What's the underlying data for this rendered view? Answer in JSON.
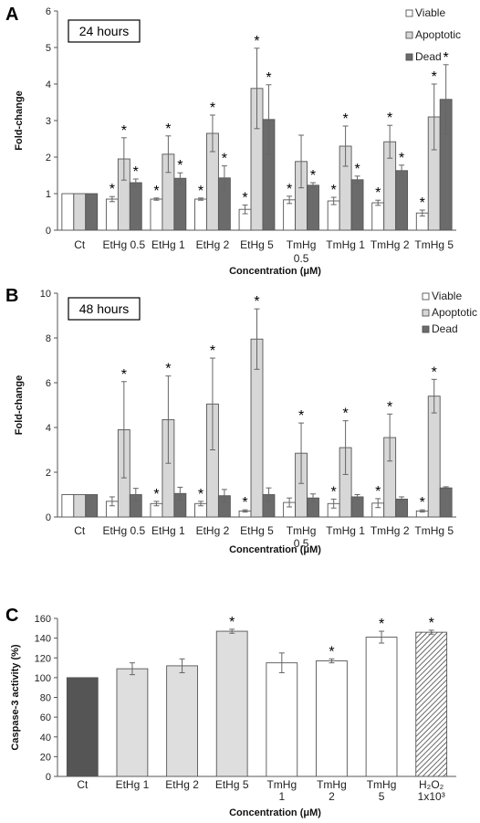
{
  "chart_data": [
    {
      "type": "bar",
      "panel_label": "A",
      "box_label": "24 hours",
      "ylabel": "Fold-change",
      "xlabel": "Concentration (μM)",
      "ylim": [
        0,
        6
      ],
      "yticks": [
        "0",
        "1",
        "2",
        "3",
        "4",
        "5",
        "6"
      ],
      "legend_position": "top-right",
      "categories": [
        [
          "Ct"
        ],
        [
          "EtHg 0.5"
        ],
        [
          "EtHg 1"
        ],
        [
          "EtHg 2"
        ],
        [
          "EtHg 5"
        ],
        [
          "TmHg",
          "0.5"
        ],
        [
          "TmHg 1"
        ],
        [
          "TmHg 2"
        ],
        [
          "TmHg 5"
        ]
      ],
      "series": [
        {
          "name": "Viable",
          "fill": "#ffffff",
          "values": [
            1.0,
            0.85,
            0.85,
            0.85,
            0.57,
            0.83,
            0.8,
            0.75,
            0.47
          ],
          "errors": [
            0,
            0.07,
            0.03,
            0.03,
            0.12,
            0.1,
            0.1,
            0.07,
            0.08
          ],
          "stars": [
            false,
            true,
            true,
            true,
            true,
            true,
            true,
            true,
            true
          ]
        },
        {
          "name": "Apoptotic",
          "fill": "#d7d7d7",
          "values": [
            1.0,
            1.95,
            2.08,
            2.65,
            3.88,
            1.88,
            2.3,
            2.42,
            3.1
          ],
          "errors": [
            0,
            0.58,
            0.5,
            0.5,
            1.1,
            0.72,
            0.55,
            0.45,
            0.9
          ],
          "stars": [
            false,
            true,
            true,
            true,
            true,
            false,
            true,
            true,
            true
          ]
        },
        {
          "name": "Dead",
          "fill": "#6b6b6b",
          "values": [
            1.0,
            1.3,
            1.42,
            1.43,
            3.03,
            1.23,
            1.38,
            1.63,
            3.58
          ],
          "errors": [
            0,
            0.1,
            0.15,
            0.33,
            0.95,
            0.07,
            0.1,
            0.15,
            0.95
          ],
          "stars": [
            false,
            true,
            true,
            true,
            true,
            true,
            true,
            true,
            true
          ]
        }
      ]
    },
    {
      "type": "bar",
      "panel_label": "B",
      "box_label": "48 hours",
      "ylabel": "Fold-change",
      "xlabel": "Concentration (μM)",
      "ylim": [
        0,
        10
      ],
      "yticks": [
        "0",
        "2",
        "4",
        "6",
        "8",
        "10"
      ],
      "legend_position": "top-right",
      "categories": [
        [
          "Ct"
        ],
        [
          "EtHg 0.5"
        ],
        [
          "EtHg 1"
        ],
        [
          "EtHg 2"
        ],
        [
          "EtHg 5"
        ],
        [
          "TmHg",
          "0.5"
        ],
        [
          "TmHg 1"
        ],
        [
          "TmHg 2"
        ],
        [
          "TmHg 5"
        ]
      ],
      "series": [
        {
          "name": "Viable",
          "fill": "#ffffff",
          "values": [
            1.0,
            0.7,
            0.6,
            0.6,
            0.27,
            0.65,
            0.6,
            0.62,
            0.27
          ],
          "errors": [
            0,
            0.2,
            0.1,
            0.1,
            0.05,
            0.2,
            0.2,
            0.2,
            0.05
          ],
          "stars": [
            false,
            false,
            true,
            true,
            true,
            false,
            true,
            true,
            true
          ]
        },
        {
          "name": "Apoptotic",
          "fill": "#d7d7d7",
          "values": [
            1.0,
            3.9,
            4.35,
            5.05,
            7.95,
            2.85,
            3.1,
            3.55,
            5.4
          ],
          "errors": [
            0,
            2.15,
            1.95,
            2.05,
            1.35,
            1.35,
            1.2,
            1.05,
            0.75
          ],
          "stars": [
            false,
            true,
            true,
            true,
            true,
            true,
            true,
            true,
            true
          ]
        },
        {
          "name": "Dead",
          "fill": "#6b6b6b",
          "values": [
            1.0,
            1.0,
            1.05,
            0.95,
            1.0,
            0.85,
            0.9,
            0.8,
            1.3
          ],
          "errors": [
            0,
            0.28,
            0.28,
            0.28,
            0.3,
            0.18,
            0.1,
            0.1,
            0.05
          ],
          "stars": [
            false,
            false,
            false,
            false,
            false,
            false,
            false,
            false,
            false
          ]
        }
      ]
    },
    {
      "type": "bar",
      "panel_label": "C",
      "ylabel": "Caspase-3 activity (%)",
      "xlabel": "Concentration (μM)",
      "ylim": [
        0,
        160
      ],
      "yticks": [
        "0",
        "20",
        "40",
        "60",
        "80",
        "100",
        "120",
        "140",
        "160"
      ],
      "categories": [
        [
          "Ct"
        ],
        [
          "EtHg 1"
        ],
        [
          "EtHg 2"
        ],
        [
          "EtHg 5"
        ],
        [
          "TmHg",
          "1"
        ],
        [
          "TmHg",
          "2"
        ],
        [
          "TmHg",
          "5"
        ],
        [
          "H₂O₂",
          "1x10³"
        ]
      ],
      "values": [
        100,
        109,
        112,
        147,
        115,
        117,
        141,
        146
      ],
      "errors": [
        0,
        6,
        7,
        2,
        10,
        2,
        6,
        2
      ],
      "stars": [
        false,
        false,
        false,
        true,
        false,
        true,
        true,
        true
      ],
      "fills": [
        "#555555",
        "#dedede",
        "#dedede",
        "#dedede",
        "#ffffff",
        "#ffffff",
        "#ffffff",
        "hatch"
      ]
    }
  ]
}
